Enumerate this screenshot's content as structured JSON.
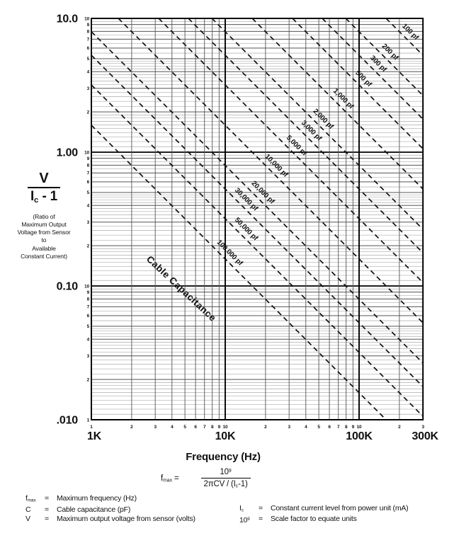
{
  "chart_data": {
    "type": "line",
    "title": "",
    "xlabel": "Frequency (Hz)",
    "ylabel": "V / (Ic - 1)",
    "x_axis": {
      "scale": "log",
      "min_hz": 1000,
      "max_hz": 300000,
      "major_labels": [
        "1K",
        "10K",
        "100K",
        "300K"
      ],
      "minor_labels_first_decade": [
        "1",
        "2",
        "3",
        "4",
        "5",
        "6",
        "7",
        "8",
        "9"
      ],
      "minor_labels_other_decades": [
        "2",
        "3",
        "4",
        "5",
        "6",
        "7",
        "8",
        "9"
      ],
      "decade_top_label": "10",
      "last_segment_minor_labels": [
        "2",
        "3"
      ]
    },
    "y_axis": {
      "scale": "log",
      "min": 0.01,
      "max": 10,
      "major_labels": [
        "10.0",
        "1.00",
        "0.10",
        ".010"
      ],
      "minor_labels": [
        "10",
        "9",
        "8",
        "7",
        "6",
        "5",
        "4",
        "3",
        "2"
      ],
      "bottom_minor_label": "1"
    },
    "diagonal_title": "Cable Capacitance",
    "relation": "ratio = 10^9 / (2*pi*C_pF*f_Hz)",
    "series": [
      {
        "c_pf": 100,
        "label": "100 pf"
      },
      {
        "c_pf": 200,
        "label": "200 pf"
      },
      {
        "c_pf": 300,
        "label": "300 pf"
      },
      {
        "c_pf": 500,
        "label": "500 pf"
      },
      {
        "c_pf": 1000,
        "label": "1,000 pf"
      },
      {
        "c_pf": 2000,
        "label": "2,000 pf"
      },
      {
        "c_pf": 3000,
        "label": "3,000 pf"
      },
      {
        "c_pf": 5000,
        "label": "5,000 pf"
      },
      {
        "c_pf": 10000,
        "label": "10,000 pf"
      },
      {
        "c_pf": 20000,
        "label": "20,000 pf"
      },
      {
        "c_pf": 30000,
        "label": "30,000 pf"
      },
      {
        "c_pf": 50000,
        "label": "50,000 pf"
      },
      {
        "c_pf": 100000,
        "label": "100,000 pf"
      }
    ],
    "colors": {
      "grid_minor": "#9a9a9a",
      "grid_integer": "#3c3c3c",
      "grid_decade": "#000000",
      "line": "#111111"
    }
  },
  "y_axis_block": {
    "numerator": "V",
    "den_main": "I",
    "den_sub": "c",
    "den_rest": " - 1",
    "caption_lines": [
      "(Ratio of",
      "Maximum Output",
      "Voltage from Sensor",
      "to",
      "Available",
      "Constant Current)"
    ]
  },
  "x_axis_title": "Frequency (Hz)",
  "formula": {
    "lhs": "f",
    "lhs_sub": "max",
    "equals": " =",
    "num_base": "10",
    "num_exp": "9",
    "den_pre": "2πCV / (I",
    "den_sub": "c",
    "den_post": "-1)"
  },
  "legend": {
    "equals": "=",
    "left": [
      {
        "term": "f",
        "term_sub": "max",
        "def": "Maximum frequency (Hz)"
      },
      {
        "term": "C",
        "def": "Cable capacitance (pF)"
      },
      {
        "term": "V",
        "def": "Maximum output voltage from sensor (volts)"
      }
    ],
    "right": [
      {
        "term": "I",
        "term_sub": "c",
        "def": "Constant current level from power unit (mA)"
      },
      {
        "term": "10",
        "term_sup": "9",
        "def": "Scale factor to equate units"
      }
    ]
  }
}
